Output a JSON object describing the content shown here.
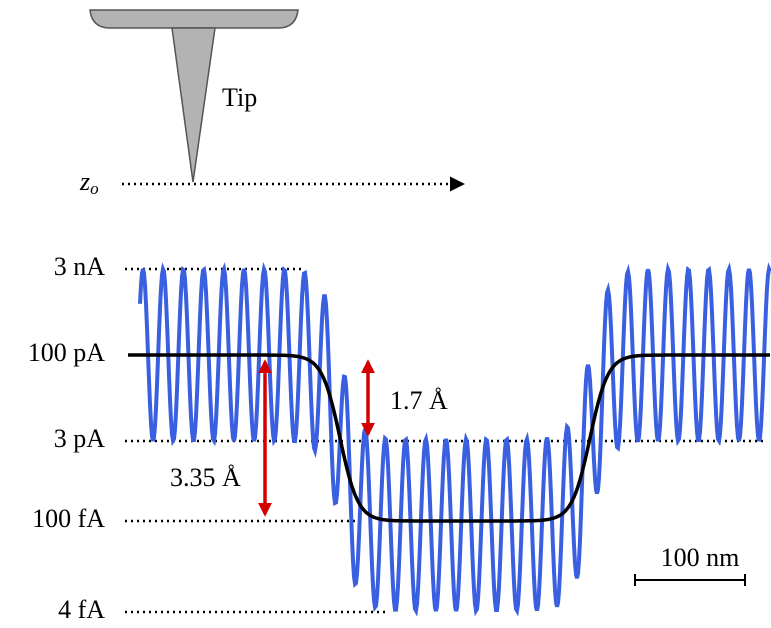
{
  "tip_label": "Tip",
  "height_label": {
    "symbol": "z",
    "subscript": "o"
  },
  "current_levels": [
    "3 nA",
    "100 pA",
    "3 pA",
    "100 fA",
    "4 fA"
  ],
  "distances": [
    "1.7 Å",
    "3.35 Å"
  ],
  "scale_bar": "100 nm"
}
